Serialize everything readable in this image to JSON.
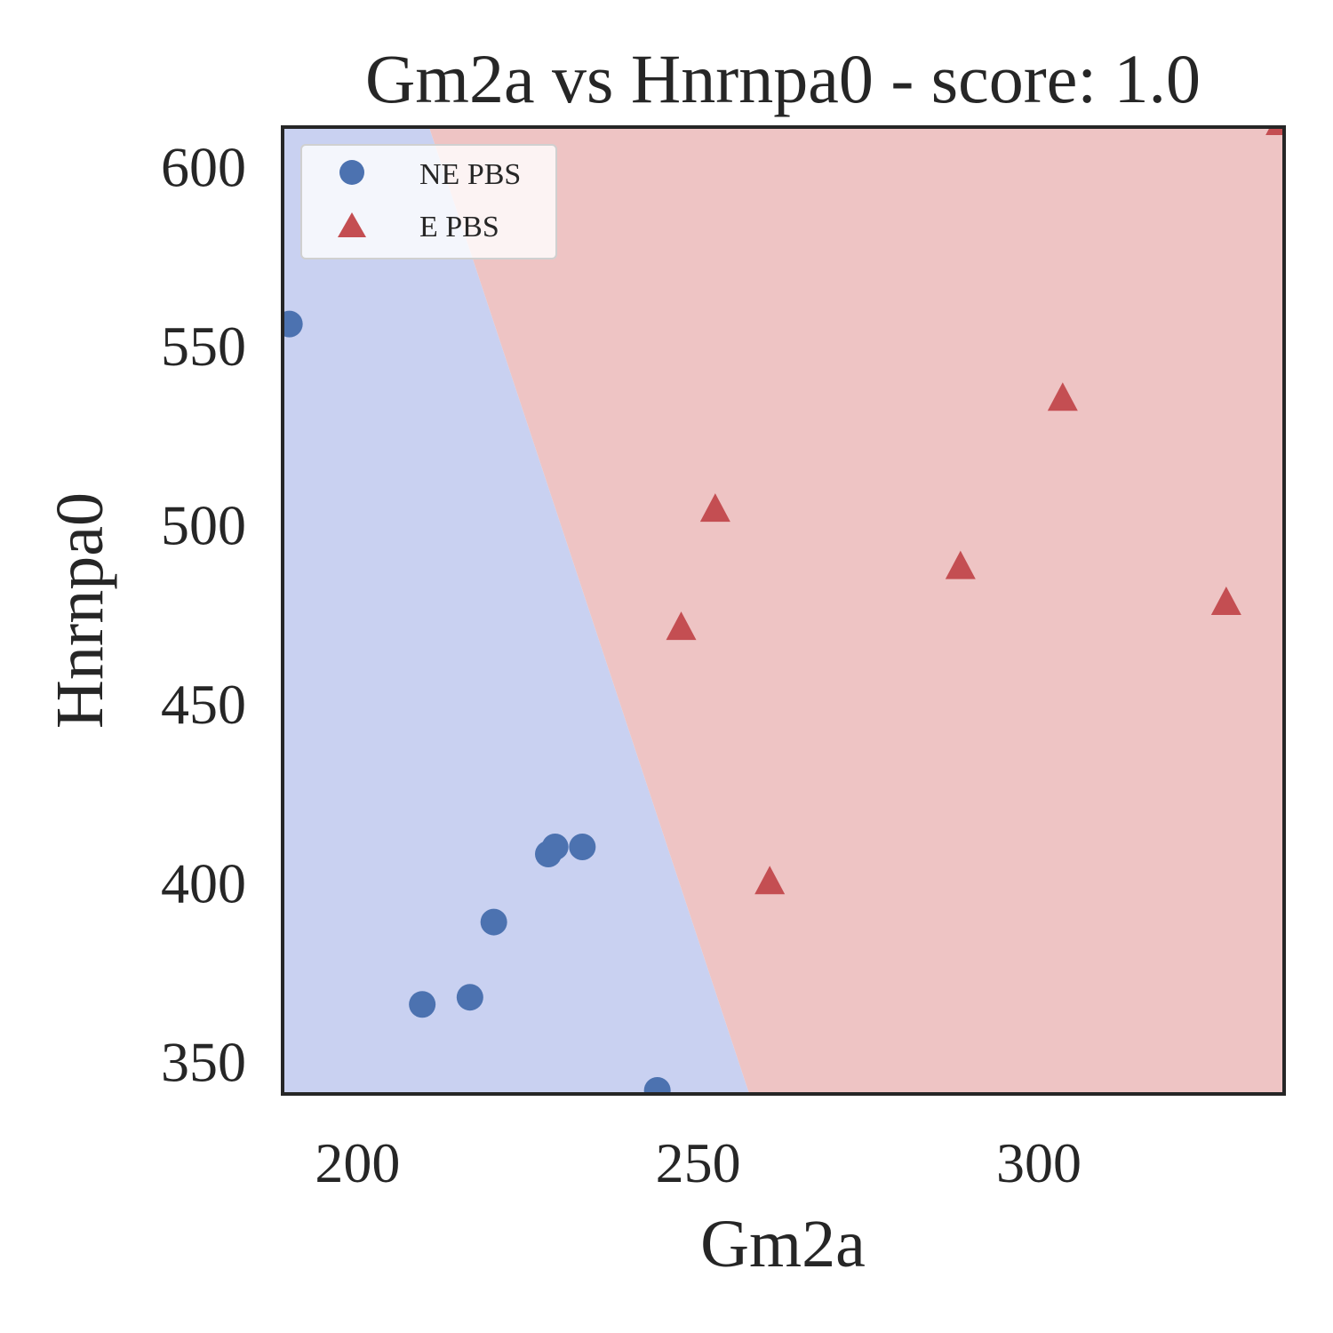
{
  "chart_data": {
    "type": "scatter",
    "title": "Gm2a vs Hnrnpa0 - score: 1.0",
    "xlabel": "Gm2a",
    "ylabel": "Hnrnpa0",
    "xlim": [
      189,
      336
    ],
    "ylim": [
      341,
      611
    ],
    "x_ticks": [
      "200",
      "250",
      "300"
    ],
    "y_ticks": [
      "350",
      "400",
      "450",
      "500",
      "550",
      "600"
    ],
    "grid": false,
    "legend_position": "top-left",
    "decision_boundary": {
      "points": [
        [
          210.5,
          611
        ],
        [
          257.5,
          341
        ]
      ],
      "left_region_color": "#c9d1f1",
      "right_region_color": "#eec4c4"
    },
    "series": [
      {
        "name": "NE PBS",
        "marker": "circle",
        "color": "#4c72b0",
        "points": [
          [
            190,
            556
          ],
          [
            209.5,
            366
          ],
          [
            216.5,
            368
          ],
          [
            220,
            389
          ],
          [
            228,
            408
          ],
          [
            229,
            410
          ],
          [
            233,
            410
          ],
          [
            244,
            342
          ]
        ]
      },
      {
        "name": "E PBS",
        "marker": "triangle",
        "color": "#c44e52",
        "points": [
          [
            247.5,
            471
          ],
          [
            252.5,
            504
          ],
          [
            260.5,
            400
          ],
          [
            288.5,
            488
          ],
          [
            303.5,
            535
          ],
          [
            327.5,
            478
          ],
          [
            335.5,
            612
          ]
        ]
      }
    ]
  }
}
